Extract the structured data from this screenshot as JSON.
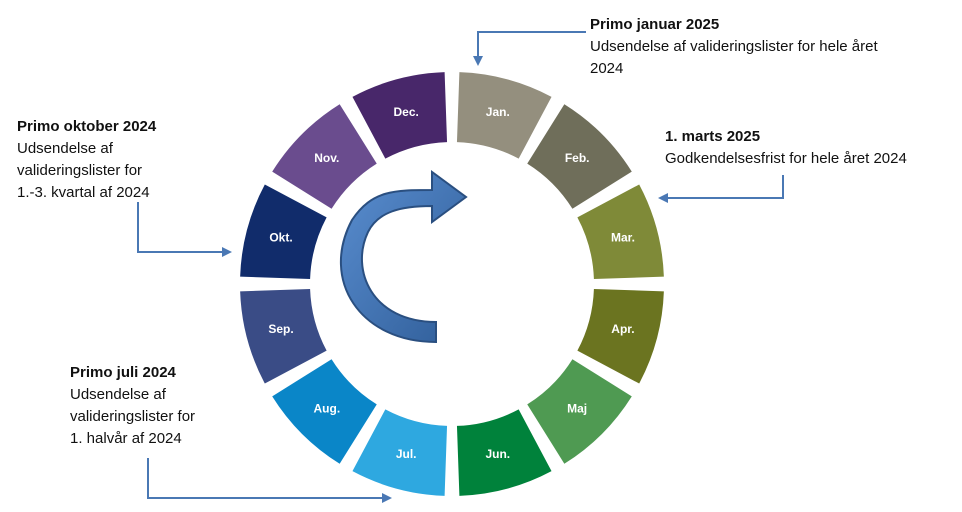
{
  "months": [
    {
      "label": "Jan.",
      "color": "#948f7e"
    },
    {
      "label": "Feb.",
      "color": "#6f6e5a"
    },
    {
      "label": "Mar.",
      "color": "#7f8a38"
    },
    {
      "label": "Apr.",
      "color": "#6b7420"
    },
    {
      "label": "Maj",
      "color": "#4f9a52"
    },
    {
      "label": "Jun.",
      "color": "#00823b"
    },
    {
      "label": "Jul.",
      "color": "#2ea8e0"
    },
    {
      "label": "Aug.",
      "color": "#0a86c8"
    },
    {
      "label": "Sep.",
      "color": "#3a4c86"
    },
    {
      "label": "Okt.",
      "color": "#112c6b"
    },
    {
      "label": "Nov.",
      "color": "#6a4c8e"
    },
    {
      "label": "Dec.",
      "color": "#48276a"
    }
  ],
  "callouts": {
    "jan": {
      "title": "Primo januar 2025",
      "body": "Udsendelse af valideringslister for hele året\n2024"
    },
    "mar": {
      "title": "1. marts 2025",
      "body": "Godkendelsesfrist for hele året 2024"
    },
    "okt": {
      "title": "Primo oktober 2024",
      "body": "Udsendelse af\nvalideringslister for\n1.-3. kvartal af 2024"
    },
    "jul": {
      "title": "Primo juli 2024",
      "body": "Udsendelse af\nvalideringslister for\n1. halvår af 2024"
    }
  },
  "colors": {
    "arrow": "#3f6fae",
    "connector": "#4a78b4"
  }
}
